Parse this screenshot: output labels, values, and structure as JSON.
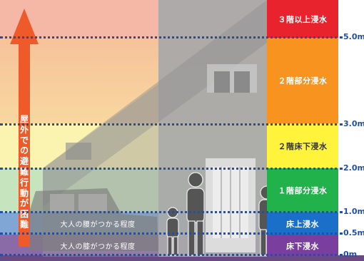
{
  "levels": [
    {
      "id": "l3",
      "label": "３階以上浸水",
      "color": "#e8232d",
      "text_color": "#ffffff"
    },
    {
      "id": "l2p",
      "label": "２階部分浸水",
      "color": "#f7931e",
      "text_color": "#ffffff"
    },
    {
      "id": "l2f",
      "label": "２階床下浸水",
      "color": "#fff33b",
      "text_color": "#333333"
    },
    {
      "id": "l1p",
      "label": "１階部分浸水",
      "color": "#22b24c",
      "text_color": "#ffffff"
    },
    {
      "id": "fa",
      "label": "床上浸水",
      "color": "#1a6fc9",
      "text_color": "#ffffff"
    },
    {
      "id": "fb",
      "label": "床下浸水",
      "color": "#7a3f9e",
      "text_color": "#ffffff"
    }
  ],
  "depth_marks": [
    "5.0m",
    "3.0m",
    "2.0m",
    "1.0m",
    "0.5m",
    "0m"
  ],
  "annotations": {
    "waist": "大人の腰がつかる程度",
    "knee": "大人の膝がつかる程度",
    "evacuation": "屋外での避難行動が困難"
  }
}
